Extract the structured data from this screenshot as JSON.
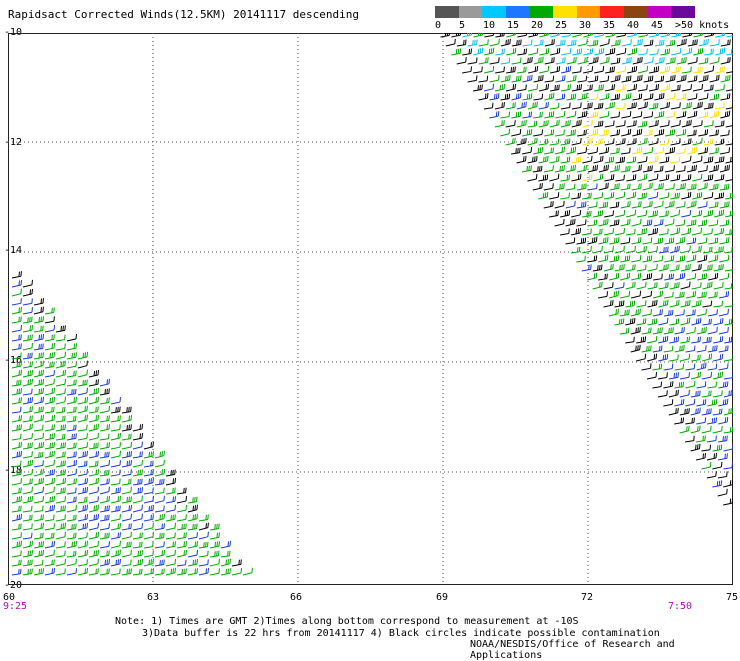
{
  "title": "Rapidsact Corrected Winds(12.5KM) 20141117 descending",
  "legend": {
    "labels": [
      "0",
      "5",
      "10",
      "15",
      "20",
      "25",
      "30",
      "35",
      "40",
      "45",
      ">50 knots"
    ],
    "colors": [
      "#555555",
      "#9a9a9a",
      "#00c8ff",
      "#1e78ff",
      "#00aa00",
      "#ffe000",
      "#ff9a00",
      "#ff2020",
      "#8b4513",
      "#c400c4",
      "#6a0a9a"
    ]
  },
  "axes": {
    "y_labels": [
      "-10",
      "-12",
      "-14",
      "-16",
      "-18",
      "-20"
    ],
    "x_labels": [
      "60",
      "63",
      "66",
      "69",
      "72",
      "75"
    ],
    "time_left": "9:25",
    "time_right": "7:50"
  },
  "notes": {
    "line1": "Note: 1) Times are GMT 2)Times along bottom correspond to measurement at -10S",
    "line2": "3)Data buffer is 22 hrs from 20141117 4) Black circles indicate possible contamination",
    "line3": "NOAA/NESDIS/Office of Research and Applications"
  },
  "colors": {
    "grid": "#555555",
    "barb_green": "#00aa00",
    "barb_blue": "#1a3cd8",
    "barb_black": "#000000",
    "barb_yellow": "#ffe000",
    "time_label": "#b010b0"
  }
}
